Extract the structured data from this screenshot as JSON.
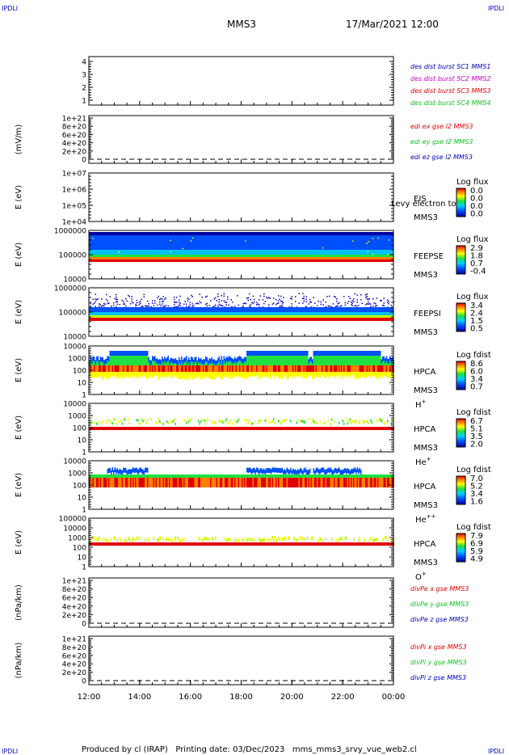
{
  "corner_label": "IPDLI",
  "header": {
    "mission": "MMS3",
    "datetime": "17/Mar/2021 12:00"
  },
  "footer": "Produced by cl (IRAP)   Printing date: 03/Dec/2023   mms_mms3_srvy_vue_web2.cl",
  "colors": {
    "red": "#e00000",
    "green": "#10c020",
    "blue": "#0000c0",
    "magenta": "#d000d0"
  },
  "chart_data": {
    "type": "multi-panel",
    "time_axis": {
      "ticks": [
        "12:00",
        "14:00",
        "16:00",
        "18:00",
        "20:00",
        "22:00",
        "00:00"
      ],
      "range_hours": [
        12,
        24
      ]
    },
    "panels": [
      {
        "id": "burst",
        "type": "event",
        "yticks": [
          "4",
          "3",
          "2",
          "1"
        ],
        "ylabel": "",
        "legend": [
          {
            "text": "des dist burst SC1 MMS1",
            "color": "#0000c0"
          },
          {
            "text": "des dist burst SC2 MMS2",
            "color": "#d000d0"
          },
          {
            "text": "des dist burst SC3 MMS3",
            "color": "#e00000"
          },
          {
            "text": "des dist burst SC4 MMS4",
            "color": "#10c020"
          }
        ]
      },
      {
        "id": "edi",
        "type": "line",
        "ylabel": "(mV/m)",
        "yticks": [
          "1e+21",
          "8e+20",
          "6e+20",
          "4e+20",
          "2e+20",
          "0"
        ],
        "legend": [
          {
            "text": "edi ex gse l2 MMS3",
            "color": "#e00000"
          },
          {
            "text": "edi ey gse l2 MMS3",
            "color": "#10c020"
          },
          {
            "text": "edi ez gse l2 MMS3",
            "color": "#0000c0"
          }
        ]
      },
      {
        "id": "eis",
        "type": "spectrogram",
        "ylabel": "E (eV)",
        "yticks": [
          "1e+07",
          "1e+06",
          "1e+05",
          "1e+04"
        ],
        "labels": [
          "EIS",
          "MMS3"
        ],
        "overlay": "Levy electron to",
        "colorbar": {
          "title": "Log flux",
          "ticks": [
            "0.0",
            "0.0",
            "0.0",
            "0.0"
          ]
        }
      },
      {
        "id": "feeps_e",
        "type": "spectrogram",
        "ylabel": "E (eV)",
        "yticks": [
          "1000000",
          "100000",
          "10000"
        ],
        "labels": [
          "FEEPSE",
          "MMS3"
        ],
        "colorbar": {
          "title": "Log flux",
          "ticks": [
            "2.9",
            "1.8",
            "0.7",
            "-0.4"
          ]
        }
      },
      {
        "id": "feeps_i",
        "type": "spectrogram",
        "ylabel": "E (eV)",
        "yticks": [
          "1000000",
          "100000",
          "10000"
        ],
        "labels": [
          "FEEPSI",
          "MMS3"
        ],
        "colorbar": {
          "title": "Log flux",
          "ticks": [
            "3.4",
            "2.4",
            "1.5",
            "0.5"
          ]
        }
      },
      {
        "id": "hpca_h",
        "type": "spectrogram",
        "ylabel": "E (eV)",
        "yticks": [
          "10000",
          "1000",
          "100",
          "10",
          "1"
        ],
        "labels": [
          "HPCA",
          "MMS3"
        ],
        "species": "H",
        "charge": "+",
        "colorbar": {
          "title": "Log fdist",
          "ticks": [
            "8.6",
            "6.0",
            "3.4",
            "0.7"
          ]
        }
      },
      {
        "id": "hpca_he",
        "type": "spectrogram",
        "ylabel": "E (eV)",
        "yticks": [
          "10000",
          "1000",
          "100",
          "10",
          "1"
        ],
        "labels": [
          "HPCA",
          "MMS3"
        ],
        "species": "He",
        "charge": "+",
        "colorbar": {
          "title": "Log fdist",
          "ticks": [
            "6.7",
            "5.1",
            "3.5",
            "2.0"
          ]
        }
      },
      {
        "id": "hpca_he2",
        "type": "spectrogram",
        "ylabel": "E (eV)",
        "yticks": [
          "10000",
          "1000",
          "100",
          "10",
          "1"
        ],
        "labels": [
          "HPCA",
          "MMS3"
        ],
        "species": "He",
        "charge": "++",
        "colorbar": {
          "title": "Log fdist",
          "ticks": [
            "7.0",
            "5.2",
            "3.4",
            "1.6"
          ]
        }
      },
      {
        "id": "hpca_o",
        "type": "spectrogram",
        "ylabel": "E (eV)",
        "yticks": [
          "100000",
          "10000",
          "1000",
          "100",
          "10",
          "1"
        ],
        "labels": [
          "HPCA",
          "MMS3"
        ],
        "species": "O",
        "charge": "+",
        "colorbar": {
          "title": "Log fdist",
          "ticks": [
            "7.9",
            "6.9",
            "5.9",
            "4.9"
          ]
        }
      },
      {
        "id": "divpe",
        "type": "line",
        "ylabel": "(nPa/km)",
        "yticks": [
          "1e+21",
          "8e+20",
          "6e+20",
          "4e+20",
          "2e+20",
          "0"
        ],
        "legend": [
          {
            "text": "divPe x gse MMS3",
            "color": "#e00000"
          },
          {
            "text": "divPe y gse MMS3",
            "color": "#10c020"
          },
          {
            "text": "divPe z gse MMS3",
            "color": "#0000c0"
          }
        ]
      },
      {
        "id": "divpi",
        "type": "line",
        "ylabel": "(nPa/km)",
        "yticks": [
          "1e+21",
          "8e+20",
          "6e+20",
          "4e+20",
          "2e+20",
          "0"
        ],
        "legend": [
          {
            "text": "divPi x gse MMS3",
            "color": "#e00000"
          },
          {
            "text": "divPi y gse MMS3",
            "color": "#10c020"
          },
          {
            "text": "divPi z gse MMS3",
            "color": "#0000c0"
          }
        ]
      }
    ]
  }
}
